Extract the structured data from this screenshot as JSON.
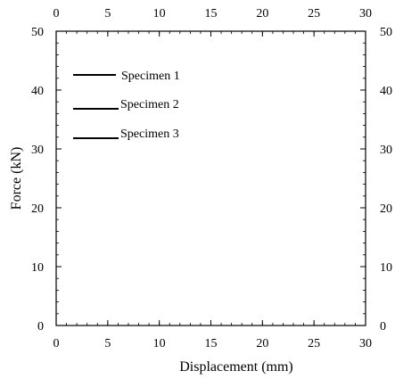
{
  "chart_data": {
    "type": "line",
    "xlabel": "Displacement (mm)",
    "ylabel": "Force (kN)",
    "xlim": [
      0,
      30
    ],
    "ylim": [
      0,
      50
    ],
    "x_ticks": [
      "0",
      "5",
      "10",
      "15",
      "20",
      "25",
      "30"
    ],
    "y_ticks": [
      "0",
      "10",
      "20",
      "30",
      "40",
      "50"
    ],
    "x_minor_step": 1,
    "y_minor_step": 2,
    "mirrored_axes": true,
    "grid": false,
    "legend_position": "top-left",
    "series": [
      {
        "name": "Specimen 1",
        "x": [],
        "y": [],
        "color": "#000000"
      },
      {
        "name": "Specimen 2",
        "x": [],
        "y": [],
        "color": "#000000"
      },
      {
        "name": "Specimen 3",
        "x": [],
        "y": [],
        "color": "#000000"
      }
    ]
  }
}
